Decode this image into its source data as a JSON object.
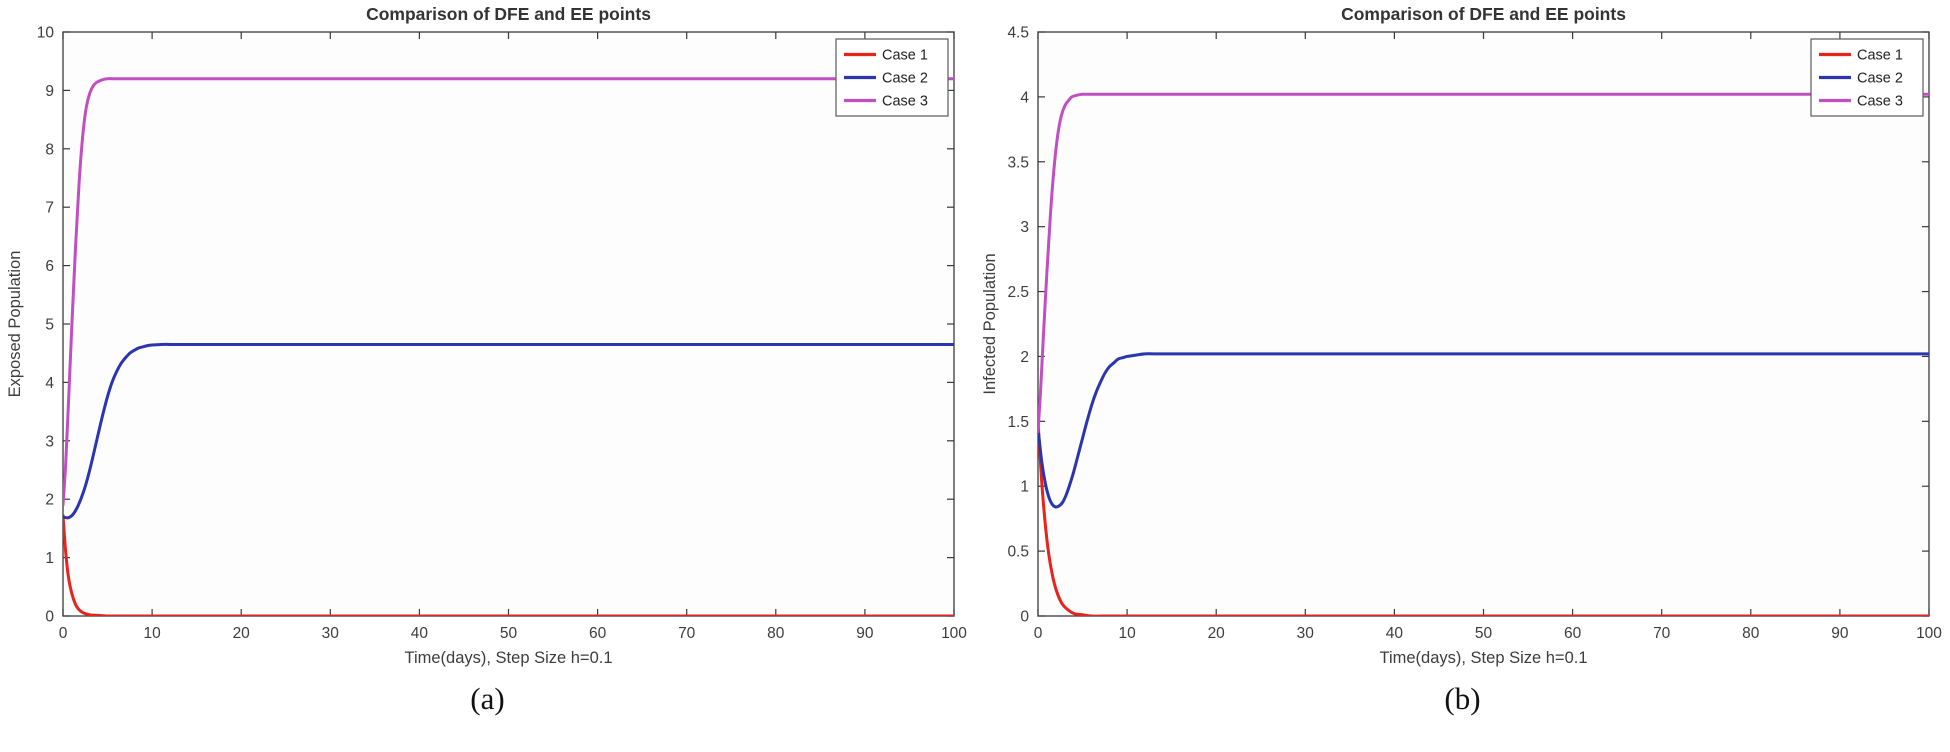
{
  "captions": {
    "a": "(a)",
    "b": "(b)"
  },
  "style": {
    "axis_color": "#3a3a3a",
    "tick_label_color": "#3d3d3d",
    "title_color": "#343434",
    "plot_background": "#fdfdfd",
    "legend_border_color": "#5a5a5a",
    "legend_background": "#ffffff"
  },
  "chart_data": [
    {
      "type": "line",
      "title": "Comparison of DFE and EE points",
      "xlabel": "Time(days), Step Size h=0.1",
      "ylabel": "Exposed Population",
      "xlim": [
        0,
        100
      ],
      "ylim": [
        0,
        10
      ],
      "xticks": [
        0,
        10,
        20,
        30,
        40,
        50,
        60,
        70,
        80,
        90,
        100
      ],
      "yticks": [
        0,
        1,
        2,
        3,
        4,
        5,
        6,
        7,
        8,
        9,
        10
      ],
      "grid": false,
      "legend_position": "top-right",
      "series": [
        {
          "name": "Case 1",
          "color": "#e8231b",
          "x": [
            0,
            0.3,
            0.6,
            1,
            1.5,
            2,
            2.5,
            3,
            4,
            5,
            6,
            8,
            10,
            20,
            50,
            100
          ],
          "y": [
            1.72,
            1.1,
            0.68,
            0.38,
            0.17,
            0.08,
            0.04,
            0.02,
            0.01,
            0,
            0,
            0,
            0,
            0,
            0,
            0
          ]
        },
        {
          "name": "Case 2",
          "color": "#2a35ae",
          "x": [
            0,
            0.5,
            1,
            1.5,
            2,
            2.5,
            3,
            3.5,
            4,
            4.5,
            5,
            5.5,
            6,
            6.5,
            7,
            7.5,
            8,
            8.5,
            9,
            9.5,
            10,
            11,
            12,
            13,
            15,
            20,
            30,
            50,
            100
          ],
          "y": [
            1.7,
            1.68,
            1.72,
            1.83,
            2.0,
            2.22,
            2.5,
            2.82,
            3.15,
            3.47,
            3.76,
            4.0,
            4.18,
            4.32,
            4.42,
            4.5,
            4.55,
            4.59,
            4.61,
            4.63,
            4.64,
            4.65,
            4.65,
            4.65,
            4.65,
            4.65,
            4.65,
            4.65,
            4.65
          ]
        },
        {
          "name": "Case 3",
          "color": "#c24fc2",
          "x": [
            0,
            0.3,
            0.6,
            1,
            1.4,
            1.8,
            2.2,
            2.6,
            3,
            3.4,
            3.8,
            4.2,
            4.6,
            5,
            6,
            8,
            10,
            20,
            50,
            100
          ],
          "y": [
            1.9,
            2.6,
            3.6,
            5.0,
            6.3,
            7.4,
            8.2,
            8.7,
            8.95,
            9.08,
            9.14,
            9.17,
            9.19,
            9.2,
            9.2,
            9.2,
            9.2,
            9.2,
            9.2,
            9.2
          ]
        }
      ]
    },
    {
      "type": "line",
      "title": "Comparison of DFE and EE points",
      "xlabel": "Time(days), Step Size h=0.1",
      "ylabel": "Infected Population",
      "xlim": [
        0,
        100
      ],
      "ylim": [
        0,
        4.5
      ],
      "xticks": [
        0,
        10,
        20,
        30,
        40,
        50,
        60,
        70,
        80,
        90,
        100
      ],
      "yticks": [
        0,
        0.5,
        1,
        1.5,
        2,
        2.5,
        3,
        3.5,
        4,
        4.5
      ],
      "grid": false,
      "legend_position": "top-right",
      "series": [
        {
          "name": "Case 1",
          "color": "#e8231b",
          "x": [
            0,
            0.4,
            0.8,
            1.2,
            1.6,
            2,
            2.5,
            3,
            4,
            5,
            6,
            8,
            10,
            20,
            50,
            100
          ],
          "y": [
            1.5,
            1.05,
            0.72,
            0.48,
            0.32,
            0.21,
            0.12,
            0.07,
            0.02,
            0.01,
            0,
            0,
            0,
            0,
            0,
            0
          ]
        },
        {
          "name": "Case 2",
          "color": "#2a35ae",
          "x": [
            0,
            0.4,
            0.8,
            1.2,
            1.6,
            2,
            2.4,
            2.8,
            3.2,
            3.6,
            4,
            4.5,
            5,
            5.5,
            6,
            6.5,
            7,
            7.5,
            8,
            8.5,
            9,
            9.5,
            10,
            11,
            12,
            13,
            15,
            20,
            30,
            50,
            100
          ],
          "y": [
            1.45,
            1.2,
            1.03,
            0.92,
            0.86,
            0.84,
            0.85,
            0.88,
            0.94,
            1.02,
            1.11,
            1.24,
            1.37,
            1.5,
            1.62,
            1.72,
            1.8,
            1.87,
            1.92,
            1.95,
            1.98,
            1.99,
            2.0,
            2.01,
            2.02,
            2.02,
            2.02,
            2.02,
            2.02,
            2.02,
            2.02
          ]
        },
        {
          "name": "Case 3",
          "color": "#c24fc2",
          "x": [
            0,
            0.3,
            0.6,
            1,
            1.4,
            1.8,
            2.2,
            2.6,
            3,
            3.4,
            3.8,
            4.2,
            5,
            6,
            8,
            10,
            20,
            50,
            100
          ],
          "y": [
            1.42,
            1.75,
            2.15,
            2.65,
            3.1,
            3.45,
            3.7,
            3.85,
            3.93,
            3.97,
            4.0,
            4.01,
            4.02,
            4.02,
            4.02,
            4.02,
            4.02,
            4.02,
            4.02
          ]
        }
      ]
    }
  ]
}
